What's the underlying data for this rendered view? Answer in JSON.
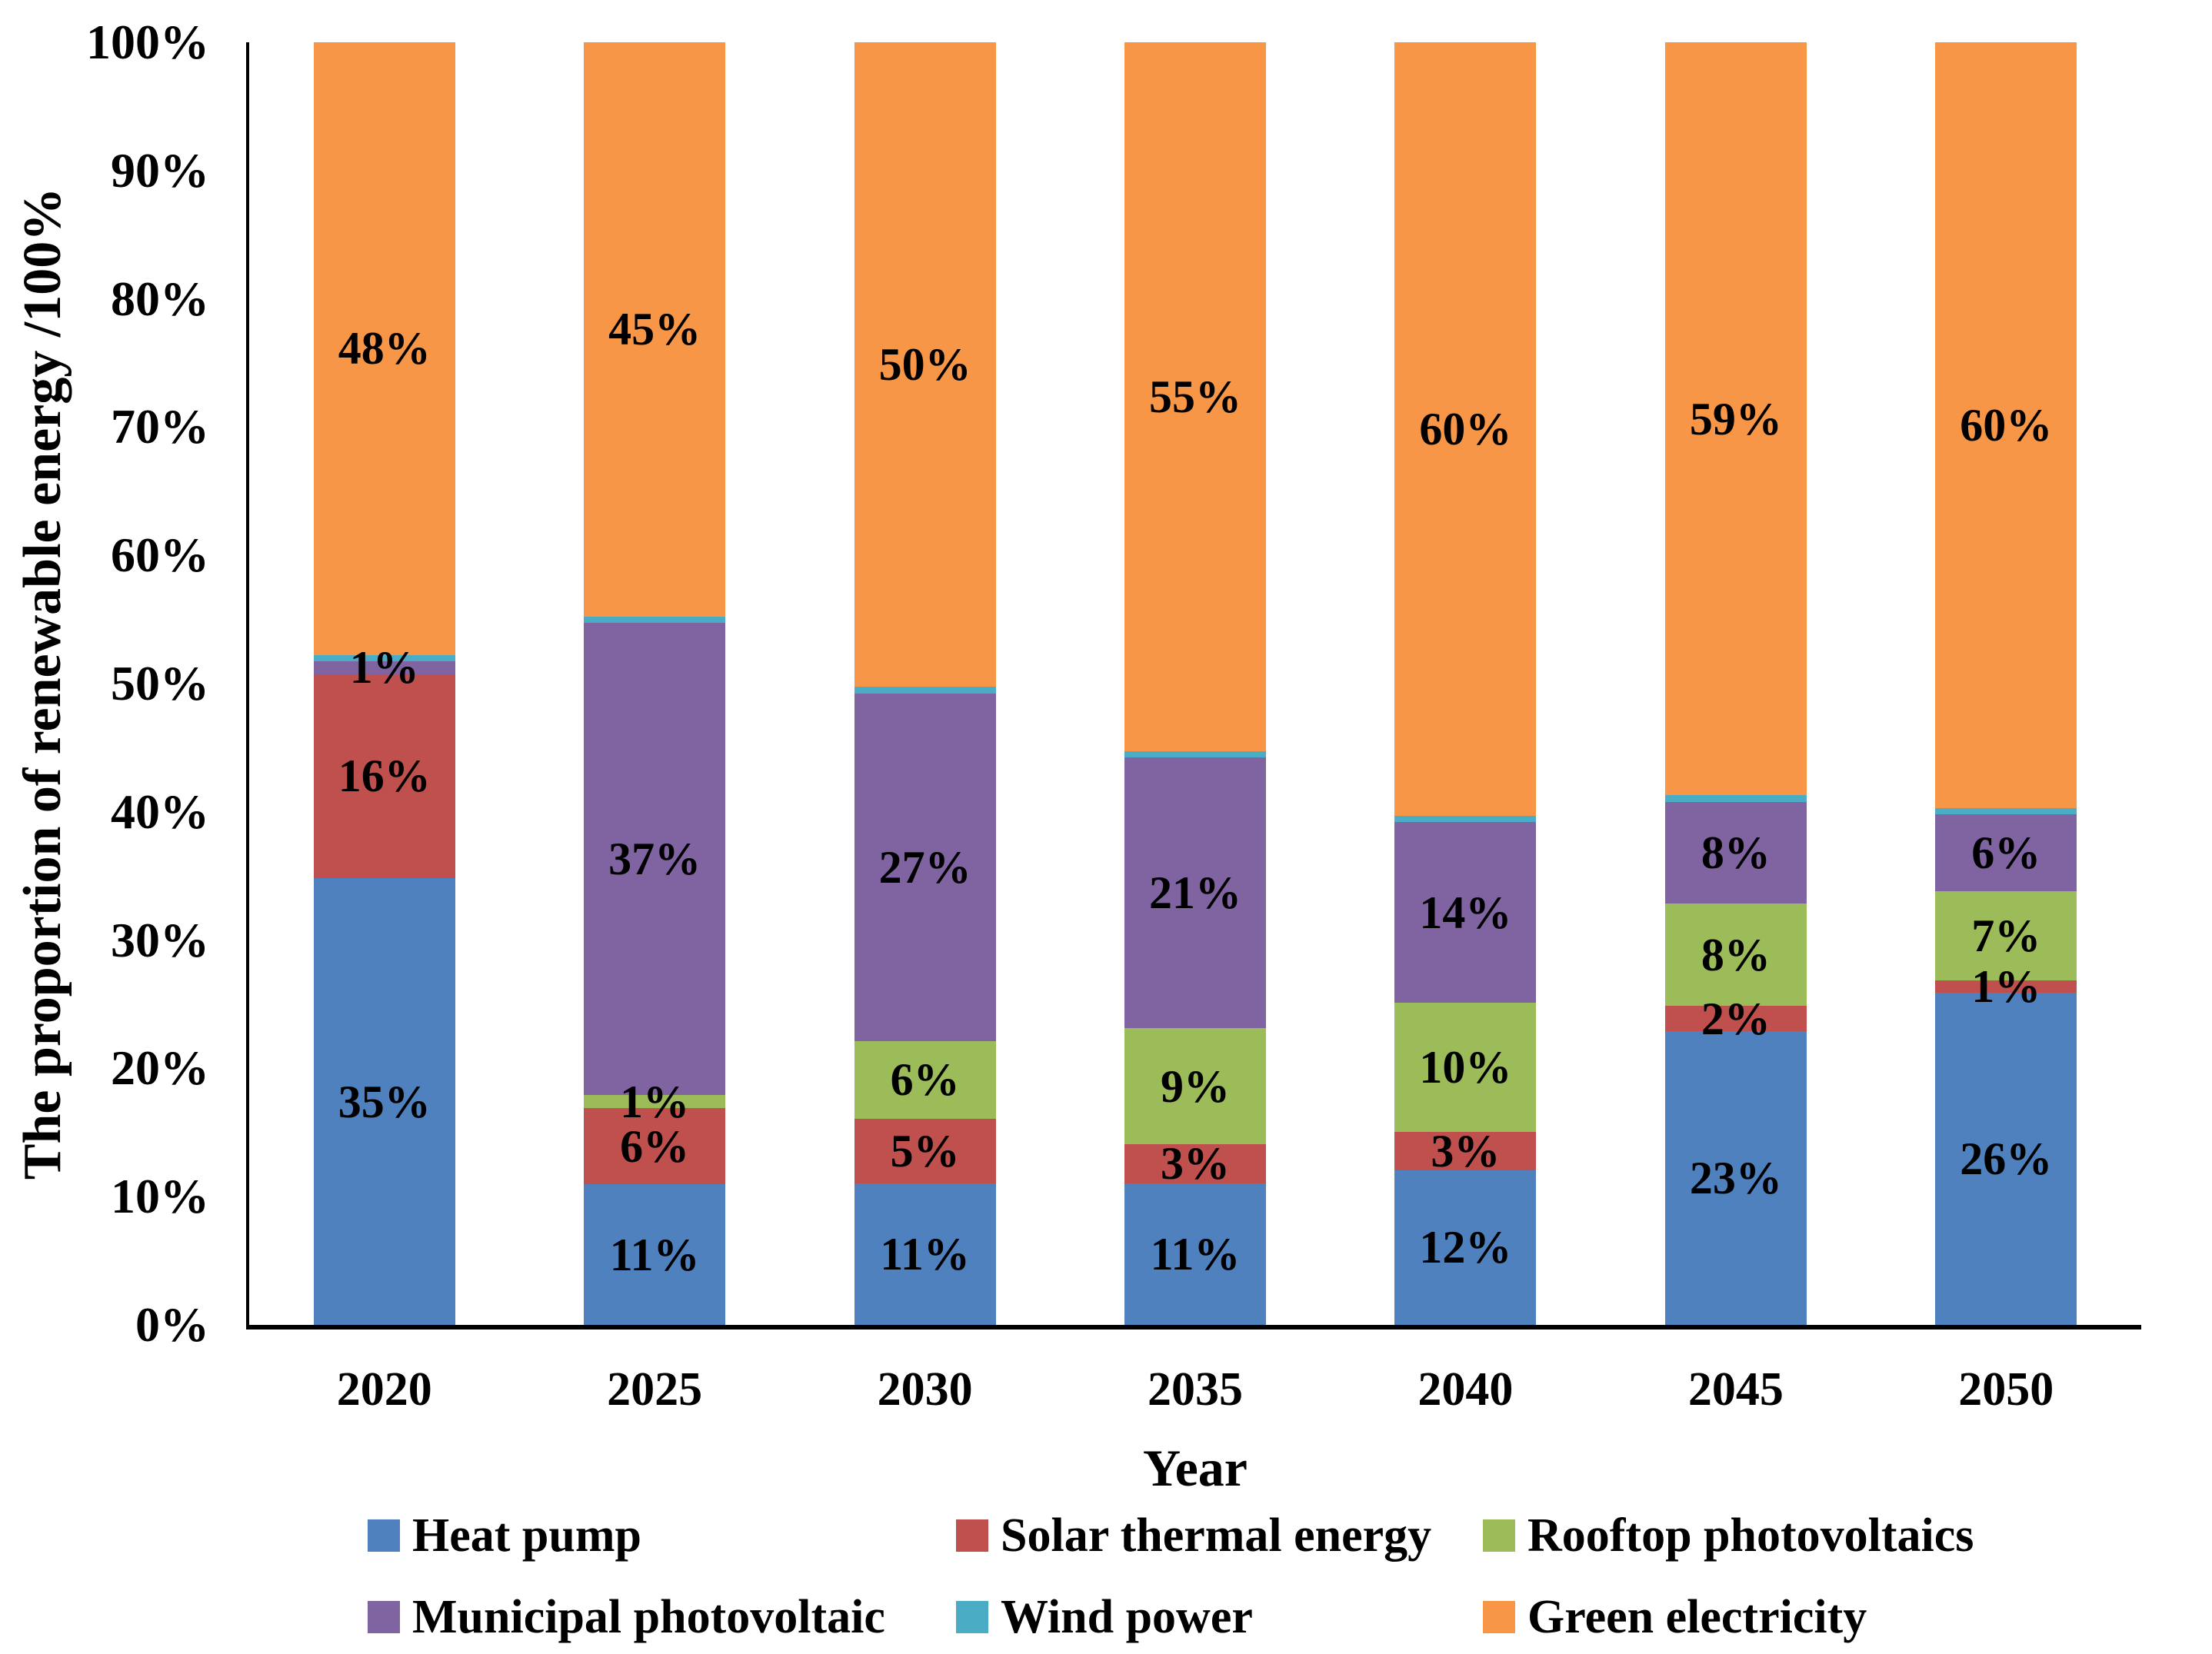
{
  "chart_data": {
    "type": "bar",
    "stacked": true,
    "percent_stacked": true,
    "title": "",
    "xlabel": "Year",
    "ylabel": "The proportion of renewable energy /100%",
    "ylim": [
      0,
      100
    ],
    "grid": false,
    "legend_position": "bottom",
    "ytick_labels": [
      "0%",
      "10%",
      "20%",
      "30%",
      "40%",
      "50%",
      "60%",
      "70%",
      "80%",
      "90%",
      "100%"
    ],
    "categories": [
      "2020",
      "2025",
      "2030",
      "2035",
      "2040",
      "2045",
      "2050"
    ],
    "series": [
      {
        "name": "Heat pump",
        "color": "#4E81BD",
        "values": [
          35,
          11,
          11,
          11,
          12,
          23,
          26
        ],
        "labels": [
          "35%",
          "11%",
          "11%",
          "11%",
          "12%",
          "23%",
          "26%"
        ]
      },
      {
        "name": "Solar thermal energy",
        "color": "#C0504D",
        "values": [
          16,
          6,
          5,
          3,
          3,
          2,
          1
        ],
        "labels": [
          "16%",
          "6%",
          "5%",
          "3%",
          "3%",
          "2%",
          "1%"
        ]
      },
      {
        "name": "Rooftop photovoltaics",
        "color": "#9CBB59",
        "values": [
          0,
          1,
          6,
          9,
          10,
          8,
          7
        ],
        "labels": [
          "",
          "1%",
          "6%",
          "9%",
          "10%",
          "8%",
          "7%"
        ]
      },
      {
        "name": "Municipal photovoltaic",
        "color": "#8064A2",
        "values": [
          1,
          37,
          27,
          21,
          14,
          8,
          6
        ],
        "labels": [
          "1%",
          "37%",
          "27%",
          "21%",
          "14%",
          "8%",
          "6%"
        ]
      },
      {
        "name": "Wind power",
        "color": "#4BACC6",
        "values": [
          0.5,
          0.5,
          0.5,
          0.5,
          0.5,
          0.5,
          0.5
        ],
        "labels": [
          "",
          "",
          "",
          "",
          "",
          "",
          ""
        ]
      },
      {
        "name": "Green electricity",
        "color": "#F79646",
        "values": [
          48,
          45,
          50,
          55,
          60,
          59,
          60
        ],
        "labels": [
          "48%",
          "45%",
          "50%",
          "55%",
          "60%",
          "59%",
          "60%"
        ]
      }
    ]
  },
  "legend": {
    "rows": [
      [
        "Heat pump",
        "Solar thermal energy",
        "Rooftop photovoltaics"
      ],
      [
        "Municipal photovoltaic",
        "Wind power",
        "Green electricity"
      ]
    ]
  }
}
